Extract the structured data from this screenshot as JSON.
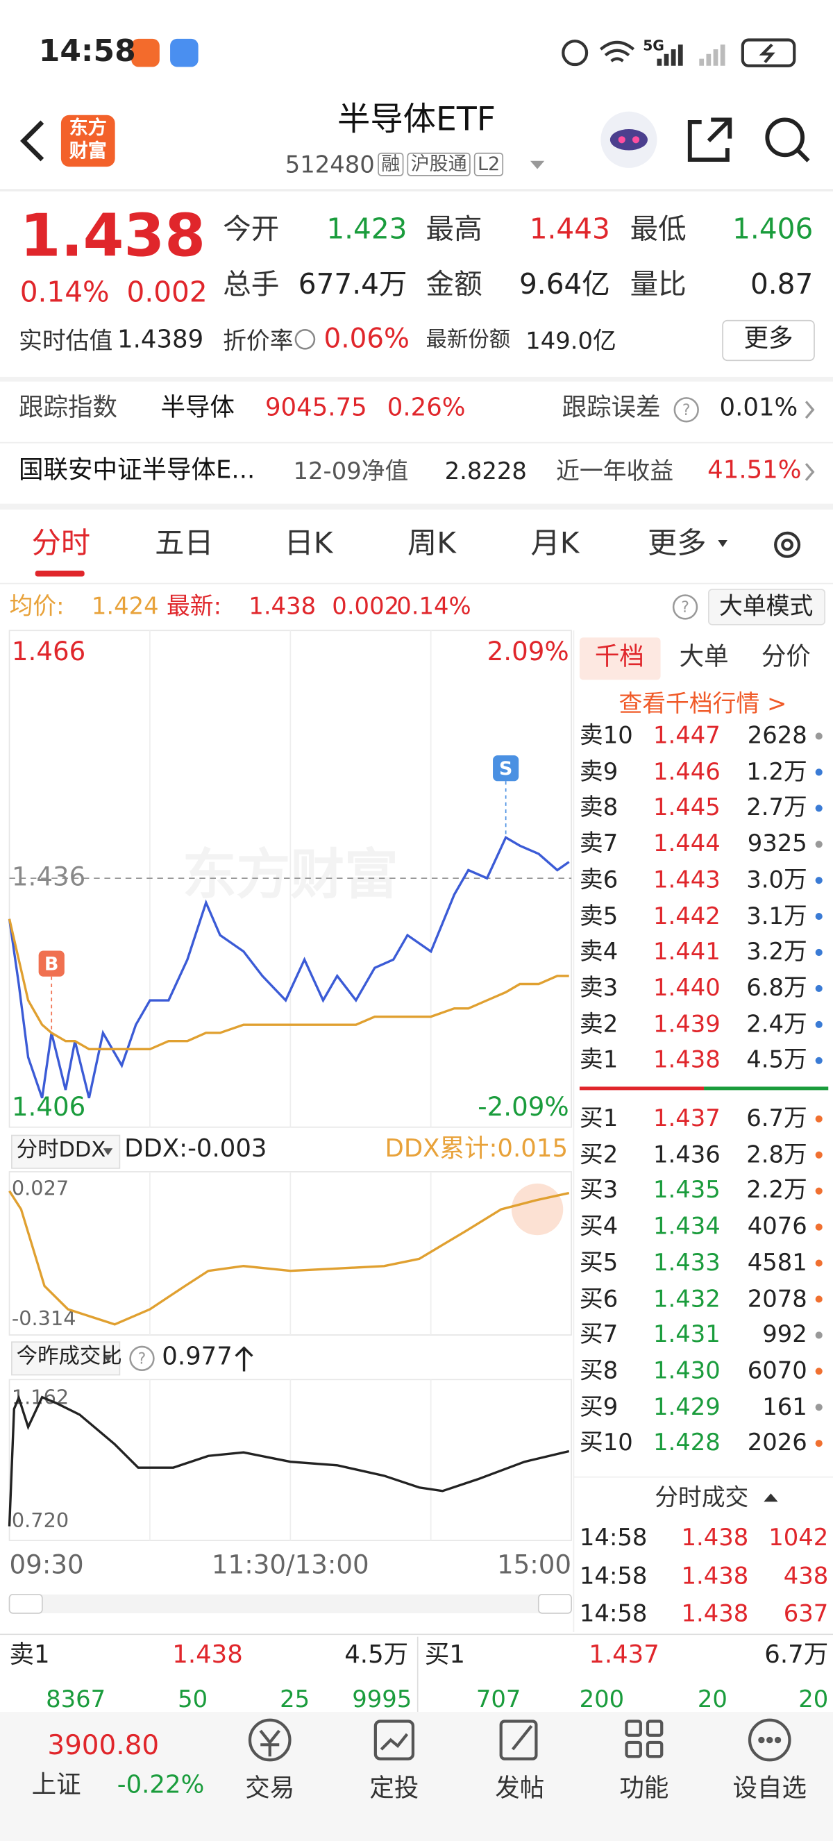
{
  "status_bar": {
    "time": "14:58",
    "network": "5G"
  },
  "header": {
    "logo": [
      "东方",
      "财富"
    ],
    "title": "半导体ETF",
    "code": "512480",
    "tags": [
      "融",
      "沪股通",
      "L2"
    ]
  },
  "quote": {
    "price": "1.438",
    "change_pct": "0.14%",
    "change": "0.002",
    "fields": [
      {
        "label": "今开",
        "value": "1.423",
        "color": "#1a9c3c"
      },
      {
        "label": "最高",
        "value": "1.443",
        "color": "#e0262b"
      },
      {
        "label": "最低",
        "value": "1.406",
        "color": "#1a9c3c"
      },
      {
        "label": "总手",
        "value": "677.4万",
        "color": "#222222"
      },
      {
        "label": "金额",
        "value": "9.64亿",
        "color": "#222222"
      },
      {
        "label": "量比",
        "value": "0.87",
        "color": "#222222"
      }
    ],
    "estimate_label": "实时估值",
    "estimate": "1.4389",
    "premium_label": "折价率",
    "premium": "0.06%",
    "shares_label": "最新份额",
    "shares": "149.0亿",
    "more": "更多"
  },
  "tracking": {
    "label": "跟踪指数",
    "index": "半导体",
    "value": "9045.75",
    "pct": "0.26%",
    "error_label": "跟踪误差",
    "error": "0.01%"
  },
  "fund": {
    "name": "国联安中证半导体E...",
    "nav_label": "12-09净值",
    "nav": "2.8228",
    "return_label": "近一年收益",
    "return": "41.51%"
  },
  "tabs": [
    "分时",
    "五日",
    "日K",
    "周K",
    "月K",
    "更多"
  ],
  "summary": {
    "avg_label": "均价:",
    "avg": "1.424",
    "latest_label": "最新:",
    "latest": "1.438",
    "change": "0.002",
    "pct": "0.14%",
    "mode": "大单模式"
  },
  "chart_data": [
    {
      "type": "line",
      "watermark": "东方财富",
      "x": [
        0,
        4,
        8,
        14,
        18,
        24,
        28,
        34,
        40,
        48,
        54,
        60,
        68,
        76,
        84,
        90,
        100,
        108,
        118,
        126,
        134,
        140,
        148,
        156,
        164,
        170,
        180,
        190,
        196,
        204,
        212,
        218,
        226,
        234,
        239
      ],
      "xlim": [
        0,
        240
      ],
      "ylim": [
        1.406,
        1.466
      ],
      "yticks": [
        1.466,
        1.436,
        1.406
      ],
      "y2lim": [
        -2.09,
        2.09
      ],
      "y2ticks": [
        {
          "value": 2.09,
          "label": "2.09%"
        },
        {
          "value": -2.09,
          "label": "-2.09%"
        }
      ],
      "series": [
        {
          "color": "#3b5bd6",
          "values": [
            1.431,
            1.423,
            1.414,
            1.409,
            1.417,
            1.41,
            1.416,
            1.409,
            1.417,
            1.413,
            1.418,
            1.421,
            1.421,
            1.426,
            1.433,
            1.429,
            1.427,
            1.424,
            1.421,
            1.426,
            1.421,
            1.424,
            1.421,
            1.425,
            1.426,
            1.429,
            1.427,
            1.434,
            1.437,
            1.436,
            1.441,
            1.44,
            1.439,
            1.437,
            1.438
          ]
        },
        {
          "color": "#e0a030",
          "values": [
            1.431,
            1.426,
            1.421,
            1.418,
            1.417,
            1.416,
            1.416,
            1.415,
            1.415,
            1.415,
            1.415,
            1.415,
            1.416,
            1.416,
            1.417,
            1.417,
            1.418,
            1.418,
            1.418,
            1.418,
            1.418,
            1.418,
            1.418,
            1.419,
            1.419,
            1.419,
            1.419,
            1.42,
            1.42,
            1.421,
            1.422,
            1.423,
            1.423,
            1.424,
            1.424
          ]
        }
      ],
      "markers": [
        {
          "label": "B",
          "x": 18,
          "color": "#f07050"
        },
        {
          "label": "S",
          "x": 212,
          "color": "#4a90e2"
        }
      ]
    },
    {
      "type": "line",
      "indicator": "分时DDX",
      "ddx_label": "DDX:-0.003",
      "ddx_total_label": "DDX累计:0.015",
      "x": [
        0,
        5,
        15,
        25,
        45,
        60,
        75,
        85,
        100,
        120,
        140,
        160,
        175,
        185,
        195,
        210,
        225,
        239
      ],
      "xlim": [
        0,
        240
      ],
      "ylim": [
        -0.314,
        0.027
      ],
      "yticks": [
        0.027,
        -0.314
      ],
      "series": [
        {
          "color": "#e0a030",
          "values": [
            0.02,
            -0.026,
            -0.218,
            -0.276,
            -0.314,
            -0.276,
            -0.218,
            -0.18,
            -0.168,
            -0.18,
            -0.174,
            -0.168,
            -0.15,
            -0.115,
            -0.08,
            -0.026,
            -0.003,
            0.015
          ]
        }
      ]
    },
    {
      "type": "line",
      "indicator": "今昨成交比",
      "current": "0.977",
      "x": [
        0,
        2,
        4,
        8,
        14,
        20,
        30,
        45,
        55,
        70,
        85,
        100,
        120,
        140,
        160,
        175,
        185,
        200,
        220,
        239
      ],
      "xlim": [
        0,
        240
      ],
      "ylim": [
        0.72,
        1.162
      ],
      "yticks": [
        1.162,
        {
          "value": 0.72,
          "label": "0.720"
        }
      ],
      "xticks": [
        {
          "value": 0,
          "label": "09:30"
        },
        {
          "value": 120,
          "label": "11:30/13:00"
        },
        {
          "value": 240,
          "label": "15:00"
        }
      ],
      "series": [
        {
          "color": "#222222",
          "values": [
            0.72,
            1.122,
            1.16,
            1.06,
            1.162,
            1.142,
            1.102,
            1.001,
            0.921,
            0.921,
            0.961,
            0.973,
            0.941,
            0.929,
            0.893,
            0.853,
            0.841,
            0.881,
            0.941,
            0.977
          ]
        }
      ]
    }
  ],
  "book": {
    "tabs": [
      "千档",
      "大单",
      "分价"
    ],
    "link": "查看千档行情 >",
    "sells": [
      {
        "label": "卖10",
        "price": "1.447",
        "volume": "2628",
        "color": "#e0262b",
        "dot": "#999999"
      },
      {
        "label": "卖9",
        "price": "1.446",
        "volume": "1.2万",
        "color": "#e0262b",
        "dot": "#3a7bd5"
      },
      {
        "label": "卖8",
        "price": "1.445",
        "volume": "2.7万",
        "color": "#e0262b",
        "dot": "#3a7bd5"
      },
      {
        "label": "卖7",
        "price": "1.444",
        "volume": "9325",
        "color": "#e0262b",
        "dot": "#999999"
      },
      {
        "label": "卖6",
        "price": "1.443",
        "volume": "3.0万",
        "color": "#e0262b",
        "dot": "#3a7bd5"
      },
      {
        "label": "卖5",
        "price": "1.442",
        "volume": "3.1万",
        "color": "#e0262b",
        "dot": "#3a7bd5"
      },
      {
        "label": "卖4",
        "price": "1.441",
        "volume": "3.2万",
        "color": "#e0262b",
        "dot": "#3a7bd5"
      },
      {
        "label": "卖3",
        "price": "1.440",
        "volume": "6.8万",
        "color": "#e0262b",
        "dot": "#3a7bd5"
      },
      {
        "label": "卖2",
        "price": "1.439",
        "volume": "2.4万",
        "color": "#e0262b",
        "dot": "#3a7bd5"
      },
      {
        "label": "卖1",
        "price": "1.438",
        "volume": "4.5万",
        "color": "#e0262b",
        "dot": "#3a7bd5"
      }
    ],
    "buys": [
      {
        "label": "买1",
        "price": "1.437",
        "volume": "6.7万",
        "color": "#e0262b",
        "dot": "#f07030"
      },
      {
        "label": "买2",
        "price": "1.436",
        "volume": "2.8万",
        "color": "#222222",
        "dot": "#f07030"
      },
      {
        "label": "买3",
        "price": "1.435",
        "volume": "2.2万",
        "color": "#1a9c3c",
        "dot": "#f07030"
      },
      {
        "label": "买4",
        "price": "1.434",
        "volume": "4076",
        "color": "#1a9c3c",
        "dot": "#f07030"
      },
      {
        "label": "买5",
        "price": "1.433",
        "volume": "4581",
        "color": "#1a9c3c",
        "dot": "#f07030"
      },
      {
        "label": "买6",
        "price": "1.432",
        "volume": "2078",
        "color": "#1a9c3c",
        "dot": "#f07030"
      },
      {
        "label": "买7",
        "price": "1.431",
        "volume": "992",
        "color": "#1a9c3c",
        "dot": "#999999"
      },
      {
        "label": "买8",
        "price": "1.430",
        "volume": "6070",
        "color": "#1a9c3c",
        "dot": "#f07030"
      },
      {
        "label": "买9",
        "price": "1.429",
        "volume": "161",
        "color": "#1a9c3c",
        "dot": "#999999"
      },
      {
        "label": "买10",
        "price": "1.428",
        "volume": "2026",
        "color": "#1a9c3c",
        "dot": "#f07030"
      }
    ]
  },
  "trades": {
    "title": "分时成交",
    "rows": [
      {
        "time": "14:58",
        "price": "1.438",
        "volume": "1042"
      },
      {
        "time": "14:58",
        "price": "1.438",
        "volume": "438"
      },
      {
        "time": "14:58",
        "price": "1.438",
        "volume": "637"
      }
    ]
  },
  "level1": {
    "sell": {
      "label": "卖1",
      "price": "1.438",
      "volume": "4.5万",
      "queue": [
        "8367",
        "50",
        "25",
        "9995"
      ]
    },
    "buy": {
      "label": "买1",
      "price": "1.437",
      "volume": "6.7万",
      "queue": [
        "707",
        "200",
        "20",
        "20"
      ]
    }
  },
  "nav": {
    "index_value": "3900.80",
    "index_name": "上证",
    "index_change": "-0.22%",
    "items": [
      "交易",
      "定投",
      "发帖",
      "功能",
      "设自选"
    ]
  }
}
